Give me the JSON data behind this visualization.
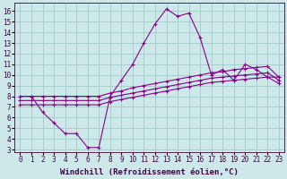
{
  "xlabel": "Windchill (Refroidissement éolien,°C)",
  "bg_color": "#cce8e8",
  "grid_color": "#99c4c4",
  "line_color": "#880088",
  "x": [
    0,
    1,
    2,
    3,
    4,
    5,
    6,
    7,
    8,
    9,
    10,
    11,
    12,
    13,
    14,
    15,
    16,
    17,
    18,
    19,
    20,
    21,
    22,
    23
  ],
  "y_main": [
    8,
    8,
    6.5,
    5.5,
    4.5,
    4.5,
    3.2,
    3.2,
    8.0,
    9.5,
    11.0,
    13.0,
    14.8,
    16.2,
    15.5,
    15.8,
    13.5,
    10.0,
    10.5,
    9.5,
    11.0,
    10.5,
    9.8,
    9.8
  ],
  "y_line_top": [
    8.0,
    8.0,
    8.0,
    8.0,
    8.0,
    8.0,
    8.0,
    8.0,
    8.3,
    8.5,
    8.8,
    9.0,
    9.2,
    9.4,
    9.6,
    9.8,
    10.0,
    10.2,
    10.3,
    10.5,
    10.6,
    10.7,
    10.8,
    9.8
  ],
  "y_line_mid": [
    7.6,
    7.6,
    7.6,
    7.6,
    7.6,
    7.6,
    7.6,
    7.6,
    7.9,
    8.1,
    8.3,
    8.5,
    8.7,
    8.9,
    9.1,
    9.3,
    9.5,
    9.7,
    9.8,
    9.9,
    10.0,
    10.1,
    10.2,
    9.5
  ],
  "y_line_bot": [
    7.2,
    7.2,
    7.2,
    7.2,
    7.2,
    7.2,
    7.2,
    7.2,
    7.5,
    7.7,
    7.9,
    8.1,
    8.3,
    8.5,
    8.7,
    8.9,
    9.1,
    9.3,
    9.4,
    9.5,
    9.6,
    9.7,
    9.8,
    9.2
  ],
  "xlim": [
    -0.5,
    23.5
  ],
  "ylim": [
    2.8,
    16.8
  ],
  "yticks": [
    3,
    4,
    5,
    6,
    7,
    8,
    9,
    10,
    11,
    12,
    13,
    14,
    15,
    16
  ],
  "xticks": [
    0,
    1,
    2,
    3,
    4,
    5,
    6,
    7,
    8,
    9,
    10,
    11,
    12,
    13,
    14,
    15,
    16,
    17,
    18,
    19,
    20,
    21,
    22,
    23
  ],
  "fontsize_tick": 5.5,
  "fontsize_label": 6.5,
  "lw": 0.8,
  "ms": 2.5
}
